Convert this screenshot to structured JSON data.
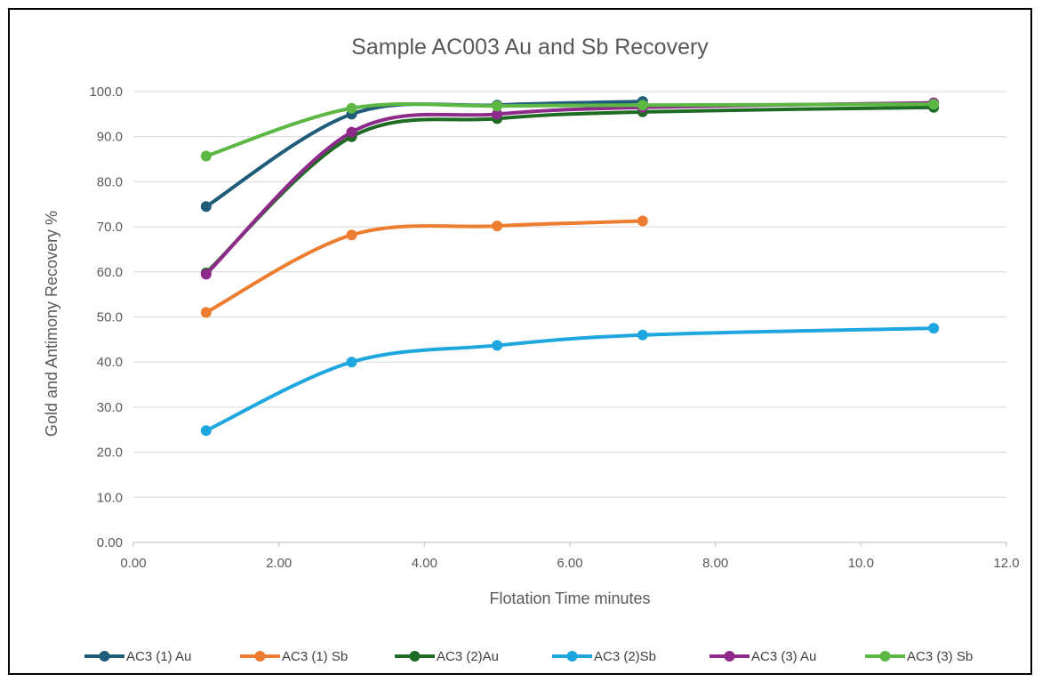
{
  "chart_data": {
    "type": "line",
    "title": "Sample AC003 Au and Sb Recovery",
    "xlabel": "Flotation Time minutes",
    "ylabel": "Gold and Antimony Recovery %",
    "xlim": [
      0,
      12
    ],
    "ylim": [
      0,
      100
    ],
    "x_ticks": [
      "0.00",
      "2.00",
      "4.00",
      "6.00",
      "8.00",
      "10.0",
      "12.0"
    ],
    "y_ticks": [
      "0.00",
      "10.0",
      "20.0",
      "30.0",
      "40.0",
      "50.0",
      "60.0",
      "70.0",
      "80.0",
      "90.0",
      "100.0"
    ],
    "grid": true,
    "smooth": true,
    "legend_position": "bottom",
    "series": [
      {
        "name": "AC3 (1) Au",
        "color": "#1f5c7a",
        "x": [
          1,
          3,
          5,
          7
        ],
        "y": [
          74.5,
          95.0,
          97.0,
          97.8
        ]
      },
      {
        "name": "AC3 (1) Sb",
        "color": "#ed7d31",
        "x": [
          1,
          3,
          5,
          7
        ],
        "y": [
          51.0,
          68.2,
          70.2,
          71.3
        ]
      },
      {
        "name": "AC3 (2)Au",
        "color": "#1e6b24",
        "x": [
          1,
          3,
          5,
          7,
          11
        ],
        "y": [
          59.8,
          90.0,
          94.0,
          95.5,
          96.5
        ]
      },
      {
        "name": "AC3 (2)Sb",
        "color": "#1ea7df",
        "x": [
          1,
          3,
          5,
          7,
          11
        ],
        "y": [
          24.8,
          40.0,
          43.7,
          46.0,
          47.5
        ]
      },
      {
        "name": "AC3 (3) Au",
        "color": "#8e2a8a",
        "x": [
          1,
          3,
          5,
          7,
          11
        ],
        "y": [
          59.5,
          91.0,
          95.0,
          96.5,
          97.5
        ]
      },
      {
        "name": "AC3 (3) Sb",
        "color": "#5cb843",
        "x": [
          1,
          3,
          5,
          7,
          11
        ],
        "y": [
          85.7,
          96.3,
          96.8,
          97.0,
          97.2
        ]
      }
    ]
  }
}
